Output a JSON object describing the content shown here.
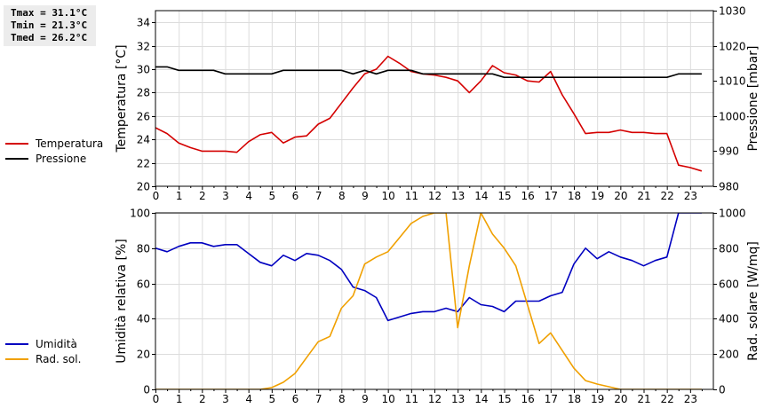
{
  "stats": {
    "tmax": "Tmax = 31.1°C",
    "tmin": "Tmin = 21.3°C",
    "tmed": "Tmed = 26.2°C"
  },
  "legend_top": [
    {
      "label": "Temperatura",
      "color": "#d40000"
    },
    {
      "label": "Pressione",
      "color": "#000000"
    }
  ],
  "legend_bottom": [
    {
      "label": "Umidità",
      "color": "#0000c0"
    },
    {
      "label": "Rad. sol.",
      "color": "#f0a000"
    }
  ],
  "chart_data": [
    {
      "type": "line",
      "xlim": [
        0,
        24
      ],
      "xticks": [
        "0",
        "1",
        "2",
        "3",
        "4",
        "5",
        "6",
        "7",
        "8",
        "9",
        "10",
        "11",
        "12",
        "13",
        "14",
        "15",
        "16",
        "17",
        "18",
        "19",
        "20",
        "21",
        "22",
        "23"
      ],
      "ylabel": "Temperatura [°C]",
      "ylim": [
        20,
        35
      ],
      "yticks": [
        "20",
        "22",
        "24",
        "26",
        "28",
        "30",
        "32",
        "34"
      ],
      "y2label": "Pressione [mbar]",
      "y2lim": [
        980,
        1030
      ],
      "y2ticks": [
        "980",
        "990",
        "1000",
        "1010",
        "1020",
        "1030"
      ],
      "grid": true,
      "series": [
        {
          "name": "Temperatura",
          "axis": "left",
          "color": "#d40000",
          "x": [
            0,
            0.5,
            1,
            1.5,
            2,
            2.5,
            3,
            3.5,
            4,
            4.5,
            5,
            5.5,
            6,
            6.5,
            7,
            7.5,
            8,
            8.5,
            9,
            9.5,
            10,
            10.5,
            11,
            11.5,
            12,
            12.5,
            13,
            13.5,
            14,
            14.5,
            15,
            15.5,
            16,
            16.5,
            17,
            17.5,
            18,
            18.5,
            19,
            19.5,
            20,
            20.5,
            21,
            21.5,
            22,
            22.5,
            23,
            23.5
          ],
          "y": [
            25.0,
            24.5,
            23.7,
            23.3,
            23.0,
            23.0,
            23.0,
            22.9,
            23.8,
            24.4,
            24.6,
            23.7,
            24.2,
            24.3,
            25.3,
            25.8,
            27.1,
            28.4,
            29.6,
            30.0,
            31.1,
            30.5,
            29.8,
            29.6,
            29.5,
            29.3,
            29.0,
            28.0,
            29.0,
            30.3,
            29.7,
            29.5,
            29.0,
            28.9,
            29.8,
            27.8,
            26.2,
            24.5,
            24.6,
            24.6,
            24.8,
            24.6,
            24.6,
            24.5,
            24.5,
            21.8,
            21.6,
            21.3
          ]
        },
        {
          "name": "Pressione",
          "axis": "right",
          "color": "#000000",
          "x": [
            0,
            0.5,
            1,
            1.5,
            2,
            2.5,
            3,
            3.5,
            4,
            4.5,
            5,
            5.5,
            6,
            6.5,
            7,
            7.5,
            8,
            8.5,
            9,
            9.5,
            10,
            10.5,
            11,
            11.5,
            12,
            12.5,
            13,
            13.5,
            14,
            14.5,
            15,
            15.5,
            16,
            16.5,
            17,
            17.5,
            18,
            18.5,
            19,
            19.5,
            20,
            20.5,
            21,
            21.5,
            22,
            22.5,
            23,
            23.5
          ],
          "y": [
            1014,
            1014,
            1013,
            1013,
            1013,
            1013,
            1012,
            1012,
            1012,
            1012,
            1012,
            1013,
            1013,
            1013,
            1013,
            1013,
            1013,
            1012,
            1013,
            1012,
            1013,
            1013,
            1013,
            1012,
            1012,
            1012,
            1012,
            1012,
            1012,
            1012,
            1011,
            1011,
            1011,
            1011,
            1011,
            1011,
            1011,
            1011,
            1011,
            1011,
            1011,
            1011,
            1011,
            1011,
            1011,
            1012,
            1012,
            1012
          ]
        }
      ]
    },
    {
      "type": "line",
      "xlim": [
        0,
        24
      ],
      "xticks": [
        "0",
        "1",
        "2",
        "3",
        "4",
        "5",
        "6",
        "7",
        "8",
        "9",
        "10",
        "11",
        "12",
        "13",
        "14",
        "15",
        "16",
        "17",
        "18",
        "19",
        "20",
        "21",
        "22",
        "23"
      ],
      "ylabel": "Umidità relativa [%]",
      "ylim": [
        0,
        100
      ],
      "yticks": [
        "0",
        "20",
        "40",
        "60",
        "80",
        "100"
      ],
      "y2label": "Rad. solare [W/mq]",
      "y2lim": [
        0,
        1000
      ],
      "y2ticks": [
        "0",
        "200",
        "400",
        "600",
        "800",
        "1000"
      ],
      "grid": true,
      "series": [
        {
          "name": "Umidità",
          "axis": "left",
          "color": "#0000c0",
          "x": [
            0,
            0.5,
            1,
            1.5,
            2,
            2.5,
            3,
            3.5,
            4,
            4.5,
            5,
            5.5,
            6,
            6.5,
            7,
            7.5,
            8,
            8.5,
            9,
            9.5,
            10,
            10.5,
            11,
            11.5,
            12,
            12.5,
            13,
            13.5,
            14,
            14.5,
            15,
            15.5,
            16,
            16.5,
            17,
            17.5,
            18,
            18.5,
            19,
            19.5,
            20,
            20.5,
            21,
            21.5,
            22,
            22.5,
            23,
            23.5
          ],
          "y": [
            80,
            78,
            81,
            83,
            83,
            81,
            82,
            82,
            77,
            72,
            70,
            76,
            73,
            77,
            76,
            73,
            68,
            58,
            56,
            52,
            39,
            41,
            43,
            44,
            44,
            46,
            44,
            52,
            48,
            47,
            44,
            50,
            50,
            50,
            53,
            55,
            71,
            80,
            74,
            78,
            75,
            73,
            70,
            73,
            75,
            100,
            100,
            100
          ]
        },
        {
          "name": "Rad. sol.",
          "axis": "right",
          "color": "#f0a000",
          "x": [
            0,
            0.5,
            1,
            1.5,
            2,
            2.5,
            3,
            3.5,
            4,
            4.5,
            5,
            5.5,
            6,
            6.5,
            7,
            7.5,
            8,
            8.5,
            9,
            9.5,
            10,
            10.5,
            11,
            11.5,
            12,
            12.5,
            13,
            13.5,
            14,
            14.5,
            15,
            15.5,
            16,
            16.5,
            17,
            17.5,
            18,
            18.5,
            19,
            19.5,
            20,
            20.5,
            21,
            21.5,
            22,
            22.5,
            23,
            23.5
          ],
          "y": [
            0,
            0,
            0,
            0,
            0,
            0,
            0,
            0,
            0,
            0,
            10,
            40,
            90,
            180,
            270,
            300,
            460,
            530,
            710,
            750,
            780,
            860,
            940,
            980,
            1000,
            1000,
            350,
            700,
            1000,
            880,
            800,
            700,
            480,
            260,
            320,
            220,
            120,
            50,
            30,
            15,
            0,
            0,
            0,
            0,
            0,
            0,
            0,
            0
          ]
        }
      ]
    }
  ]
}
